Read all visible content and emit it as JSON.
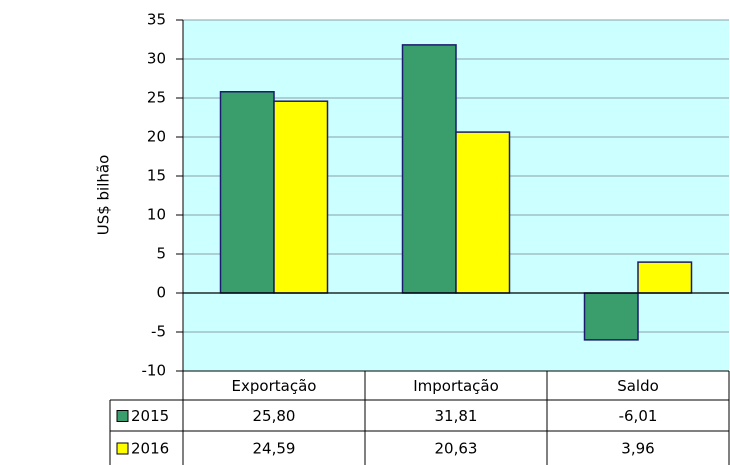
{
  "chart_data": {
    "type": "bar",
    "y_axis_label": "US$ bilhão",
    "categories": [
      "Exportação",
      "Importação",
      "Saldo"
    ],
    "series": [
      {
        "name": "2015",
        "color": "#3a9e6c",
        "values": [
          25.8,
          31.81,
          -6.01
        ],
        "value_labels": [
          "25,80",
          "31,81",
          "-6,01"
        ]
      },
      {
        "name": "2016",
        "color": "#ffff00",
        "values": [
          24.59,
          20.63,
          3.96
        ],
        "value_labels": [
          "24,59",
          "20,63",
          "3,96"
        ]
      }
    ],
    "ylim": [
      -10,
      35
    ],
    "yticks": [
      -10,
      -5,
      0,
      5,
      10,
      15,
      20,
      25,
      30,
      35
    ],
    "grid": true,
    "plot_background": "#ccffff",
    "data_table": true
  }
}
